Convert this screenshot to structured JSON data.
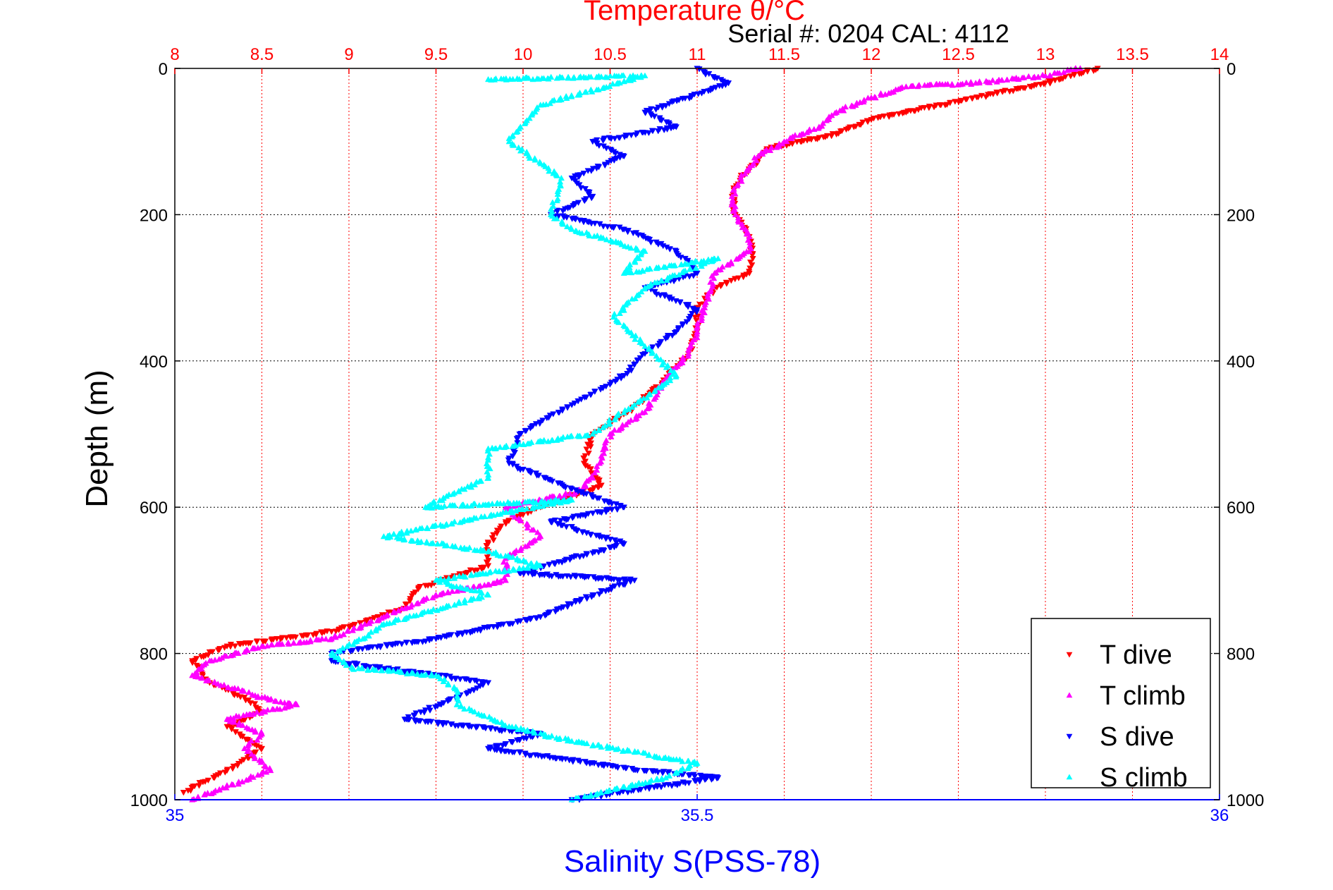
{
  "chart_data": {
    "type": "scatter",
    "title": "Temperature θ/°C",
    "subtitle": "Serial #: 0204  CAL: 4112",
    "ylabel": "Depth (m)",
    "xlabel_bottom": "Salinity S(PSS-78)",
    "top_axis": {
      "label": "Temperature θ/°C",
      "range": [
        8,
        14
      ],
      "ticks": [
        "8",
        "8.5",
        "9",
        "9.5",
        "10",
        "10.5",
        "11",
        "11.5",
        "12",
        "12.5",
        "13",
        "13.5",
        "14"
      ]
    },
    "bottom_axis": {
      "label": "Salinity S(PSS-78)",
      "range": [
        35,
        36
      ],
      "ticks": [
        "35",
        "35.5",
        "36"
      ]
    },
    "y_axis": {
      "label": "Depth (m)",
      "range": [
        0,
        1000
      ],
      "reversed": true,
      "ticks": [
        "0",
        "200",
        "400",
        "600",
        "800",
        "1000"
      ]
    },
    "grid": true,
    "legend_position": "bottom-right",
    "series": [
      {
        "name": "T dive",
        "axis": "top",
        "color": "#ff0000",
        "marker": "triangle-down",
        "x": [
          13.3,
          13.0,
          12.7,
          12.4,
          12.2,
          12.0,
          11.9,
          11.8,
          11.6,
          11.4,
          11.35,
          11.25,
          11.2,
          11.22,
          11.3,
          11.32,
          11.3,
          11.1,
          11.0,
          11.0,
          10.95,
          10.8,
          10.6,
          10.4,
          10.35,
          10.45,
          10.1,
          9.9,
          9.8,
          9.8,
          9.4,
          9.3,
          8.9,
          8.3,
          8.1,
          8.2,
          8.4,
          8.5,
          8.3,
          8.5,
          8.3,
          8.05
        ],
        "y": [
          0,
          20,
          35,
          50,
          60,
          70,
          80,
          90,
          100,
          110,
          125,
          150,
          175,
          200,
          230,
          260,
          280,
          300,
          330,
          360,
          390,
          430,
          470,
          500,
          540,
          570,
          600,
          620,
          650,
          680,
          710,
          740,
          770,
          790,
          810,
          840,
          860,
          880,
          900,
          930,
          960,
          990
        ]
      },
      {
        "name": "T climb",
        "axis": "top",
        "color": "#ff00ff",
        "marker": "triangle-up",
        "x": [
          13.2,
          13.0,
          12.6,
          12.2,
          12.0,
          11.8,
          11.7,
          11.6,
          11.5,
          11.35,
          11.25,
          11.2,
          11.22,
          11.3,
          11.3,
          11.1,
          11.05,
          11.0,
          10.95,
          10.8,
          10.7,
          10.5,
          10.45,
          10.4,
          10.3,
          9.9,
          10.1,
          9.9,
          9.9,
          9.5,
          9.2,
          8.9,
          8.5,
          8.2,
          8.1,
          8.5,
          8.7,
          8.3,
          8.5,
          8.4,
          8.55,
          8.1
        ],
        "y": [
          0,
          10,
          20,
          25,
          40,
          60,
          80,
          90,
          100,
          120,
          150,
          175,
          200,
          230,
          250,
          280,
          320,
          360,
          390,
          430,
          470,
          500,
          530,
          560,
          580,
          600,
          640,
          670,
          700,
          720,
          750,
          780,
          790,
          810,
          830,
          860,
          870,
          890,
          910,
          930,
          960,
          1000
        ]
      },
      {
        "name": "S dive",
        "axis": "bottom",
        "color": "#0000ff",
        "marker": "triangle-down",
        "x": [
          35.5,
          35.53,
          35.45,
          35.48,
          35.4,
          35.43,
          35.38,
          35.4,
          35.36,
          35.43,
          35.48,
          35.5,
          35.45,
          35.5,
          35.48,
          35.45,
          35.43,
          35.38,
          35.33,
          35.32,
          35.38,
          35.43,
          35.36,
          35.43,
          35.33,
          35.44,
          35.4,
          35.35,
          35.25,
          35.15,
          35.15,
          35.3,
          35.27,
          35.22,
          35.35,
          35.3,
          35.45,
          35.52,
          35.38
        ],
        "y": [
          0,
          20,
          60,
          80,
          100,
          120,
          150,
          175,
          200,
          220,
          250,
          280,
          300,
          330,
          360,
          390,
          420,
          460,
          500,
          540,
          575,
          600,
          620,
          650,
          690,
          700,
          720,
          750,
          780,
          800,
          810,
          840,
          860,
          890,
          910,
          930,
          960,
          970,
          1000
        ]
      },
      {
        "name": "S climb",
        "axis": "bottom",
        "color": "#00ffff",
        "marker": "triangle-up",
        "x": [
          35.3,
          35.45,
          35.35,
          35.32,
          35.37,
          35.36,
          35.38,
          35.45,
          35.43,
          35.52,
          35.45,
          35.42,
          35.45,
          35.48,
          35.44,
          35.4,
          35.3,
          35.3,
          35.24,
          35.38,
          35.2,
          35.3,
          35.35,
          35.25,
          35.3,
          35.2,
          35.18,
          35.15,
          35.17,
          35.25,
          35.27,
          35.27,
          35.32,
          35.38,
          35.5,
          35.47,
          35.38
        ],
        "y": [
          15,
          10,
          50,
          100,
          150,
          200,
          220,
          250,
          280,
          260,
          300,
          340,
          380,
          420,
          460,
          500,
          520,
          560,
          600,
          590,
          640,
          660,
          680,
          700,
          720,
          760,
          780,
          800,
          820,
          830,
          850,
          870,
          900,
          920,
          950,
          970,
          1000
        ]
      }
    ]
  }
}
